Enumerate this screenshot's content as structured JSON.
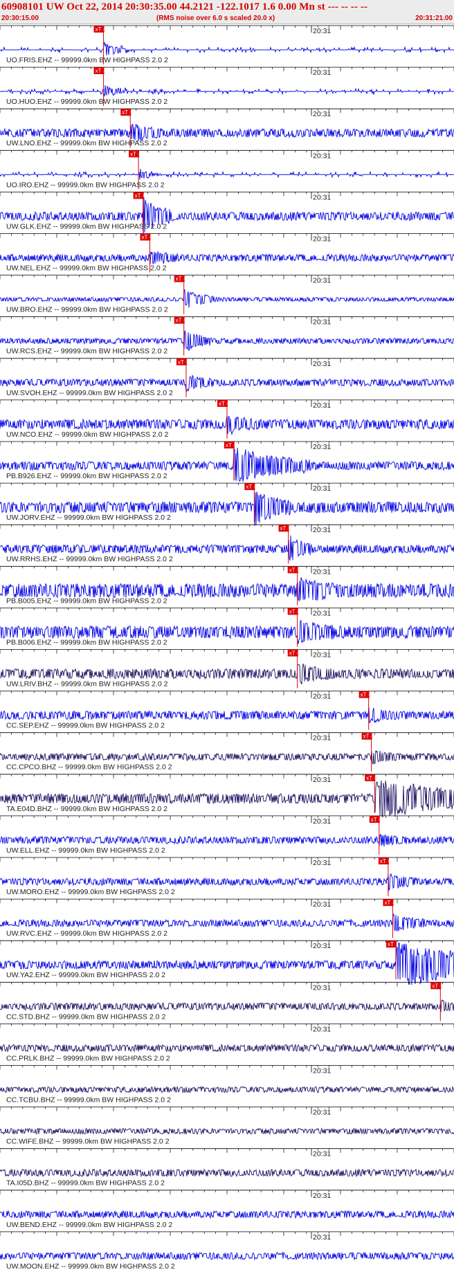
{
  "header": {
    "title": "60908101 UW Oct 22, 2014 20:30:35.00   44.2121 -122.1017  1.6 0.00 Mn st --- -- --  --",
    "start_time": "20:30:15.00",
    "rms_note": "(RMS noise over 6.0 s scaled 20.0 x)",
    "end_time": "20:31:21.00"
  },
  "minute_mark": "20:31",
  "pick_label": "xT 4",
  "colors": {
    "blue": "#0000e6",
    "dark": "#1a1060",
    "pick": "#e00000"
  },
  "traces": [
    {
      "label": "UO.FRIS.EHZ -- 99999.0km BW  HIGHPASS  2.0  2",
      "pick": 0.228,
      "amp": 4,
      "burst": 12,
      "bw": 0.02,
      "color": "blue",
      "gappy": true
    },
    {
      "label": "UO.HUO.EHZ -- 99999.0km BW  HIGHPASS  2.0  2",
      "pick": 0.228,
      "amp": 4,
      "burst": 10,
      "bw": 0.02,
      "color": "blue",
      "gappy": true
    },
    {
      "label": "UW.LNO.EHZ -- 99999.0km BW  HIGHPASS  2.0  2",
      "pick": 0.287,
      "amp": 6,
      "burst": 12,
      "bw": 0.04,
      "color": "blue",
      "gappy": false
    },
    {
      "label": "UO.IRO.EHZ -- 99999.0km BW  HIGHPASS  2.0  2",
      "pick": 0.305,
      "amp": 4,
      "burst": 8,
      "bw": 0.02,
      "color": "blue",
      "gappy": true
    },
    {
      "label": "UW.GLK.EHZ -- 99999.0km BW  HIGHPASS  2.0  2",
      "pick": 0.315,
      "amp": 6,
      "burst": 24,
      "bw": 0.04,
      "color": "blue",
      "gappy": false
    },
    {
      "label": "UW.NEL.EHZ -- 99999.0km BW  HIGHPASS  2.0  2",
      "pick": 0.33,
      "amp": 5,
      "burst": 9,
      "bw": 0.03,
      "color": "blue",
      "gappy": false
    },
    {
      "label": "UW.BRO.EHZ -- 99999.0km BW  HIGHPASS  2.0  2",
      "pick": 0.405,
      "amp": 3,
      "burst": 14,
      "bw": 0.04,
      "color": "blue",
      "gappy": false
    },
    {
      "label": "UW.RCS.EHZ -- 99999.0km BW  HIGHPASS  2.0  2",
      "pick": 0.405,
      "amp": 4,
      "burst": 16,
      "bw": 0.03,
      "color": "blue",
      "gappy": false
    },
    {
      "label": "UW.SVOH.EHZ -- 99999.0km BW  HIGHPASS  2.0  2",
      "pick": 0.41,
      "amp": 5,
      "burst": 10,
      "bw": 0.03,
      "color": "blue",
      "gappy": false
    },
    {
      "label": "UW.NCO.EHZ -- 99999.0km BW  HIGHPASS  2.0  2",
      "pick": 0.5,
      "amp": 7,
      "burst": 12,
      "bw": 0.03,
      "color": "blue",
      "gappy": false
    },
    {
      "label": "PB.B926.EHZ -- 99999.0km BW  HIGHPASS  2.0  2",
      "pick": 0.515,
      "amp": 6,
      "burst": 26,
      "bw": 0.14,
      "color": "blue",
      "gappy": false
    },
    {
      "label": "UW.JORV.EHZ -- 99999.0km BW  HIGHPASS  2.0  2",
      "pick": 0.56,
      "amp": 8,
      "burst": 22,
      "bw": 0.05,
      "color": "blue",
      "gappy": false
    },
    {
      "label": "UW.RRHS.EHZ -- 99999.0km BW  HIGHPASS  2.0  2",
      "pick": 0.635,
      "amp": 6,
      "burst": 18,
      "bw": 0.02,
      "color": "blue",
      "gappy": false
    },
    {
      "label": "PB.B005.EHZ -- 99999.0km BW  HIGHPASS  2.0  2",
      "pick": 0.655,
      "amp": 10,
      "burst": 14,
      "bw": 0.05,
      "color": "blue",
      "gappy": false
    },
    {
      "label": "PB.B006.EHZ -- 99999.0km BW  HIGHPASS  2.0  2",
      "pick": 0.655,
      "amp": 9,
      "burst": 13,
      "bw": 0.05,
      "color": "blue",
      "gappy": false
    },
    {
      "label": "UW.LRIV.BHZ -- 99999.0km BW  HIGHPASS  2.0  2",
      "pick": 0.655,
      "amp": 7,
      "burst": 12,
      "bw": 0.05,
      "color": "dark",
      "gappy": false
    },
    {
      "label": "CC.SEP.EHZ -- 99999.0km BW  HIGHPASS  2.0  2",
      "pick": 0.812,
      "amp": 6,
      "burst": 8,
      "bw": 0.03,
      "color": "blue",
      "gappy": false
    },
    {
      "label": "CC.CPCO.BHZ -- 99999.0km BW  HIGHPASS  2.0  2",
      "pick": 0.818,
      "amp": 5,
      "burst": 8,
      "bw": 0.03,
      "color": "dark",
      "gappy": false
    },
    {
      "label": "TA.E04D.BHZ -- 99999.0km BW  HIGHPASS  2.0  2",
      "pick": 0.825,
      "amp": 7,
      "burst": 26,
      "bw": 0.28,
      "color": "dark",
      "gappy": false
    },
    {
      "label": "UW.ELL.EHZ -- 99999.0km BW  HIGHPASS  2.0  2",
      "pick": 0.835,
      "amp": 5,
      "burst": 7,
      "bw": 0.03,
      "color": "blue",
      "gappy": false
    },
    {
      "label": "UW.MORO.EHZ -- 99999.0km BW  HIGHPASS  2.0  2",
      "pick": 0.855,
      "amp": 5,
      "burst": 10,
      "bw": 0.03,
      "color": "blue",
      "gappy": false
    },
    {
      "label": "UW.RVC.EHZ -- 99999.0km BW  HIGHPASS  2.0  2",
      "pick": 0.865,
      "amp": 5,
      "burst": 12,
      "bw": 0.04,
      "color": "blue",
      "gappy": false
    },
    {
      "label": "UW.YA2.EHZ -- 99999.0km BW  HIGHPASS  2.0  2",
      "pick": 0.872,
      "amp": 6,
      "burst": 30,
      "bw": 0.3,
      "color": "blue",
      "gappy": false
    },
    {
      "label": "CC.STD.BHZ -- 99999.0km BW  HIGHPASS  2.0  2",
      "pick": 0.97,
      "amp": 5,
      "burst": 6,
      "bw": 0.02,
      "color": "dark",
      "gappy": false
    },
    {
      "label": "CC.PRLK.BHZ -- 99999.0km BW  HIGHPASS  2.0  2",
      "pick": null,
      "amp": 5,
      "burst": 0,
      "bw": 0,
      "color": "dark",
      "gappy": false
    },
    {
      "label": "CC.TCBU.BHZ -- 99999.0km BW  HIGHPASS  2.0  2",
      "pick": null,
      "amp": 4,
      "burst": 0,
      "bw": 0,
      "color": "dark",
      "gappy": false
    },
    {
      "label": "CC.WIFE.BHZ -- 99999.0km BW  HIGHPASS  2.0  2",
      "pick": null,
      "amp": 4,
      "burst": 0,
      "bw": 0,
      "color": "dark",
      "gappy": false
    },
    {
      "label": "TA.I05D.BHZ -- 99999.0km BW  HIGHPASS  2.0  2",
      "pick": null,
      "amp": 5,
      "burst": 0,
      "bw": 0,
      "color": "dark",
      "gappy": false
    },
    {
      "label": "UW.BEND.EHZ -- 99999.0km BW  HIGHPASS  2.0  2",
      "pick": null,
      "amp": 5,
      "burst": 0,
      "bw": 0,
      "color": "blue",
      "gappy": false
    },
    {
      "label": "UW.MOON.EHZ -- 99999.0km BW  HIGHPASS  2.0  2",
      "pick": null,
      "amp": 5,
      "burst": 0,
      "bw": 0,
      "color": "blue",
      "gappy": false
    }
  ]
}
